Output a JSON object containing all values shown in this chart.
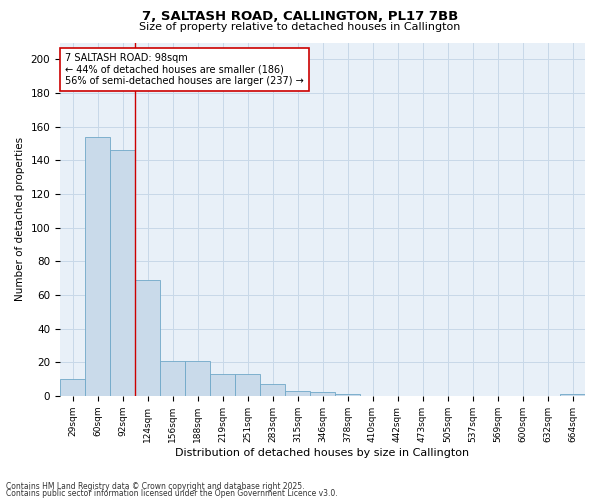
{
  "title1": "7, SALTASH ROAD, CALLINGTON, PL17 7BB",
  "title2": "Size of property relative to detached houses in Callington",
  "xlabel": "Distribution of detached houses by size in Callington",
  "ylabel": "Number of detached properties",
  "bar_labels": [
    "29sqm",
    "60sqm",
    "92sqm",
    "124sqm",
    "156sqm",
    "188sqm",
    "219sqm",
    "251sqm",
    "283sqm",
    "315sqm",
    "346sqm",
    "378sqm",
    "410sqm",
    "442sqm",
    "473sqm",
    "505sqm",
    "537sqm",
    "569sqm",
    "600sqm",
    "632sqm",
    "664sqm"
  ],
  "bar_values": [
    10,
    154,
    146,
    69,
    21,
    21,
    13,
    13,
    7,
    3,
    2,
    1,
    0,
    0,
    0,
    0,
    0,
    0,
    0,
    0,
    1
  ],
  "bar_color": "#c9daea",
  "bar_edge_color": "#6fa8c8",
  "grid_color": "#c8d8e8",
  "bg_color": "#e8f0f8",
  "vline_x": 2.5,
  "vline_color": "#cc0000",
  "annotation_text": "7 SALTASH ROAD: 98sqm\n← 44% of detached houses are smaller (186)\n56% of semi-detached houses are larger (237) →",
  "annotation_box_color": "#ffffff",
  "annotation_box_edge": "#cc0000",
  "footnote1": "Contains HM Land Registry data © Crown copyright and database right 2025.",
  "footnote2": "Contains public sector information licensed under the Open Government Licence v3.0.",
  "ylim": [
    0,
    210
  ],
  "yticks": [
    0,
    20,
    40,
    60,
    80,
    100,
    120,
    140,
    160,
    180,
    200
  ]
}
